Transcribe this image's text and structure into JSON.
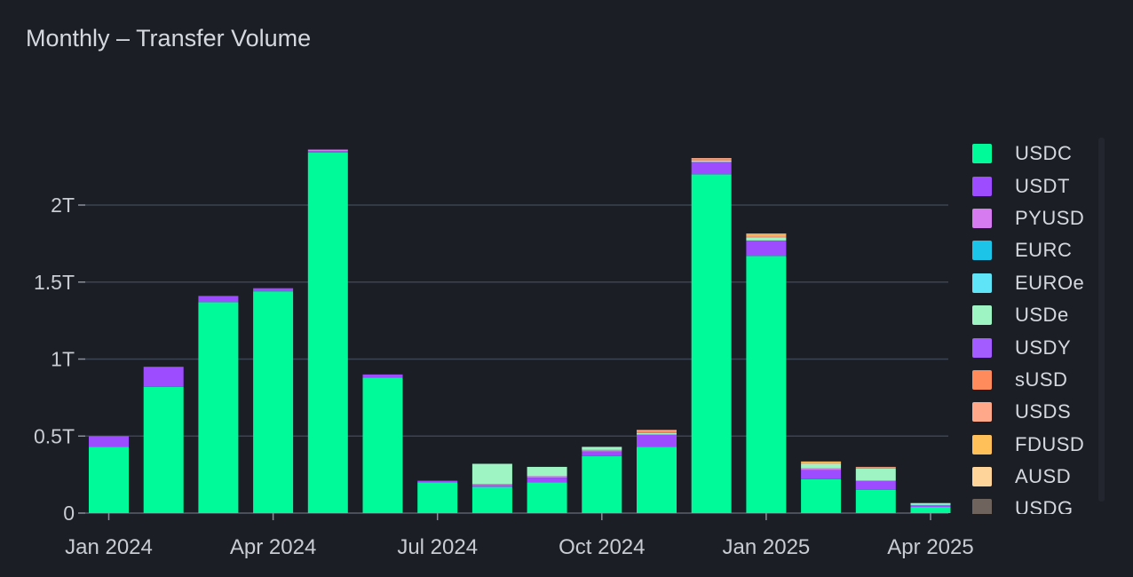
{
  "title": "Monthly – Transfer Volume",
  "chart_data": {
    "type": "bar",
    "stacked": true,
    "title": "Monthly – Transfer Volume",
    "xlabel": "",
    "ylabel": "",
    "ylim": [
      0,
      2.5
    ],
    "y_unit": "T",
    "y_ticks": [
      "0",
      "0.5T",
      "1T",
      "1.5T",
      "2T"
    ],
    "x_tick_labels": [
      "Jan 2024",
      "Apr 2024",
      "Jul 2024",
      "Oct 2024",
      "Jan 2025",
      "Apr 2025"
    ],
    "grid": true,
    "legend_position": "right",
    "categories": [
      "2024-01",
      "2024-02",
      "2024-03",
      "2024-04",
      "2024-05",
      "2024-06",
      "2024-07",
      "2024-08",
      "2024-09",
      "2024-10",
      "2024-11",
      "2024-12",
      "2025-01",
      "2025-02",
      "2025-03",
      "2025-04"
    ],
    "series": [
      {
        "name": "USDC",
        "color": "#00fa9a",
        "values": [
          0.43,
          0.82,
          1.37,
          1.44,
          2.34,
          0.88,
          0.2,
          0.17,
          0.2,
          0.37,
          0.43,
          2.2,
          1.67,
          0.22,
          0.15,
          0.04
        ]
      },
      {
        "name": "USDT",
        "color": "#9d4cff",
        "values": [
          0.07,
          0.13,
          0.04,
          0.02,
          0.01,
          0.02,
          0.01,
          0.01,
          0.03,
          0.03,
          0.08,
          0.08,
          0.1,
          0.06,
          0.06,
          0.01
        ]
      },
      {
        "name": "PYUSD",
        "color": "#d77bf0",
        "values": [
          0,
          0,
          0,
          0,
          0.01,
          0,
          0,
          0.01,
          0.01,
          0.01,
          0,
          0,
          0,
          0.01,
          0,
          0
        ]
      },
      {
        "name": "EURC",
        "color": "#1cc4e8",
        "values": [
          0,
          0,
          0,
          0,
          0,
          0,
          0,
          0,
          0,
          0,
          0,
          0,
          0,
          0,
          0,
          0
        ]
      },
      {
        "name": "EUROe",
        "color": "#5fe3f7",
        "values": [
          0,
          0,
          0,
          0,
          0,
          0,
          0,
          0,
          0,
          0,
          0,
          0,
          0,
          0,
          0,
          0.005
        ]
      },
      {
        "name": "USDe",
        "color": "#9ef5c3",
        "values": [
          0,
          0,
          0,
          0,
          0,
          0,
          0,
          0.13,
          0.06,
          0.02,
          0.01,
          0.01,
          0.02,
          0.03,
          0.08,
          0.01
        ]
      },
      {
        "name": "USDY",
        "color": "#a35cff",
        "values": [
          0,
          0,
          0,
          0,
          0,
          0,
          0,
          0,
          0,
          0,
          0,
          0,
          0,
          0,
          0,
          0
        ]
      },
      {
        "name": "sUSD",
        "color": "#ff8a5c",
        "values": [
          0,
          0,
          0,
          0,
          0,
          0,
          0,
          0,
          0,
          0,
          0.01,
          0.005,
          0.005,
          0,
          0.005,
          0
        ]
      },
      {
        "name": "USDS",
        "color": "#ffa98a",
        "values": [
          0,
          0,
          0,
          0,
          0,
          0,
          0,
          0,
          0,
          0,
          0.01,
          0.01,
          0.01,
          0.005,
          0.005,
          0
        ]
      },
      {
        "name": "FDUSD",
        "color": "#ffc05a",
        "values": [
          0,
          0,
          0,
          0,
          0,
          0,
          0,
          0,
          0,
          0,
          0,
          0,
          0.01,
          0.01,
          0,
          0
        ]
      },
      {
        "name": "AUSD",
        "color": "#ffd49a",
        "values": [
          0,
          0,
          0,
          0,
          0,
          0,
          0,
          0,
          0,
          0,
          0,
          0,
          0,
          0,
          0,
          0
        ]
      },
      {
        "name": "USDG",
        "color": "#6e645d",
        "values": [
          0,
          0,
          0,
          0,
          0,
          0,
          0,
          0,
          0,
          0,
          0,
          0,
          0,
          0,
          0,
          0
        ]
      }
    ]
  }
}
